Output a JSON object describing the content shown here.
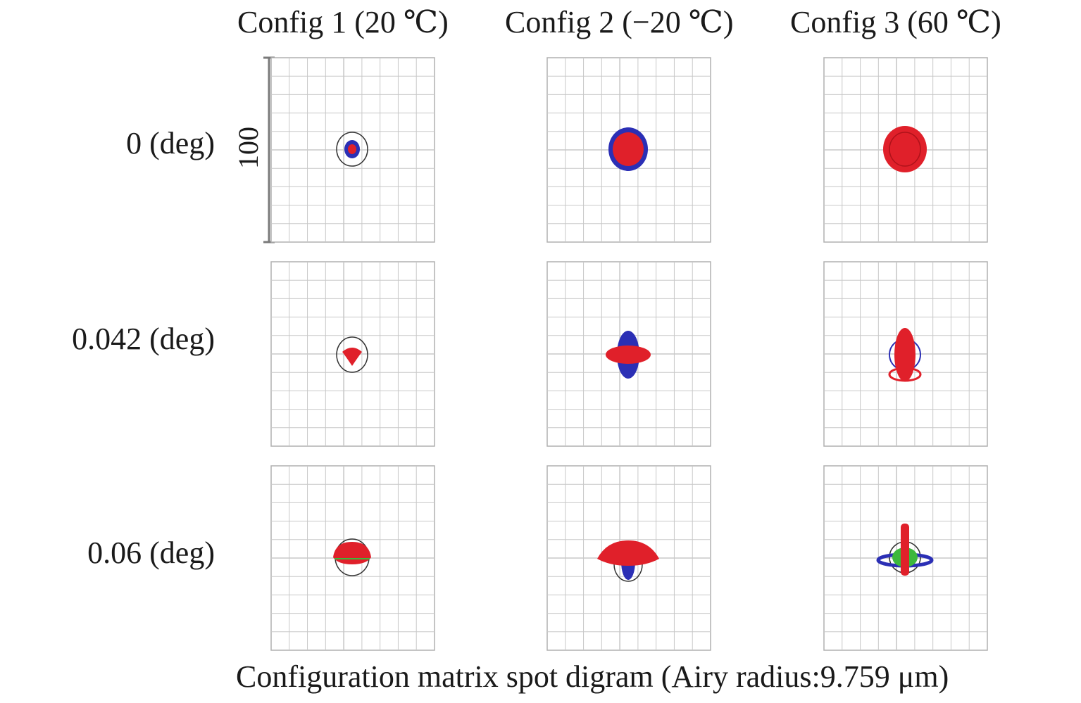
{
  "columns": [
    {
      "label": "Config 1 (20 ℃)"
    },
    {
      "label": "Config 2 (−20 ℃)"
    },
    {
      "label": "Config 3 (60 ℃)"
    }
  ],
  "rows": [
    {
      "label": "0 (deg)"
    },
    {
      "label": "0.042 (deg)"
    },
    {
      "label": "0.06 (deg)"
    }
  ],
  "scale_label": "100",
  "caption": "Configuration matrix spot digram (Airy radius:9.759 μm)",
  "colors": {
    "grid": "#c8c8c8",
    "grid_border": "#b0b0b0",
    "wavelength_1": "#2b2fb5",
    "wavelength_2": "#e0202a",
    "wavelength_3": "#3cb83c",
    "airy_circle": "#333333"
  },
  "legend_note": ""
}
